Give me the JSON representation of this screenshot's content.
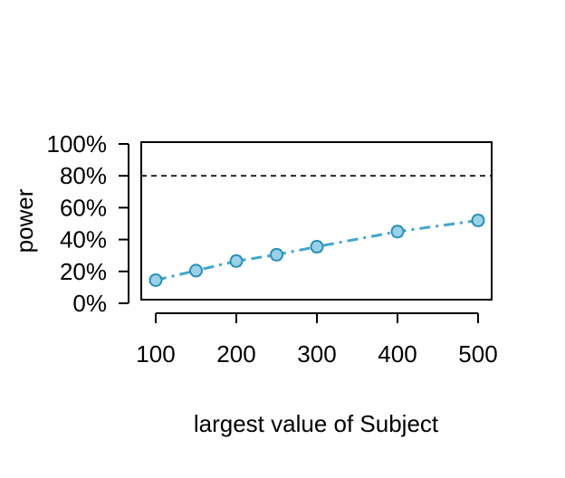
{
  "chart_data": {
    "type": "line",
    "title": "",
    "xlabel": "largest value of Subject",
    "ylabel": "power",
    "x": [
      100,
      150,
      200,
      250,
      300,
      400,
      500
    ],
    "xticks": [
      "100",
      "200",
      "300",
      "400",
      "500"
    ],
    "xtick_values": [
      100,
      200,
      300,
      400,
      500
    ],
    "yticks": [
      "0%",
      "20%",
      "40%",
      "60%",
      "80%",
      "100%"
    ],
    "ytick_values": [
      0,
      20,
      40,
      60,
      80,
      100
    ],
    "xlim": [
      90,
      510
    ],
    "ylim": [
      0,
      100
    ],
    "reference_line": {
      "y": 80,
      "style": "dashed",
      "color": "#000000"
    },
    "series": [
      {
        "values": [
          14.5,
          20.5,
          26.5,
          30.5,
          35.5,
          45.0,
          52.0
        ],
        "ci_lower": [
          12.5,
          18.0,
          23.5,
          27.5,
          32.5,
          42.0,
          49.0
        ],
        "ci_upper": [
          16.5,
          23.0,
          29.5,
          33.5,
          38.5,
          48.0,
          55.0
        ],
        "line_color": "#44a6cc",
        "marker_fill": "#9ad1e6",
        "marker_edge": "#2a8fb8",
        "line_style": "dash-dot"
      }
    ],
    "grid": false,
    "legend": "none"
  }
}
